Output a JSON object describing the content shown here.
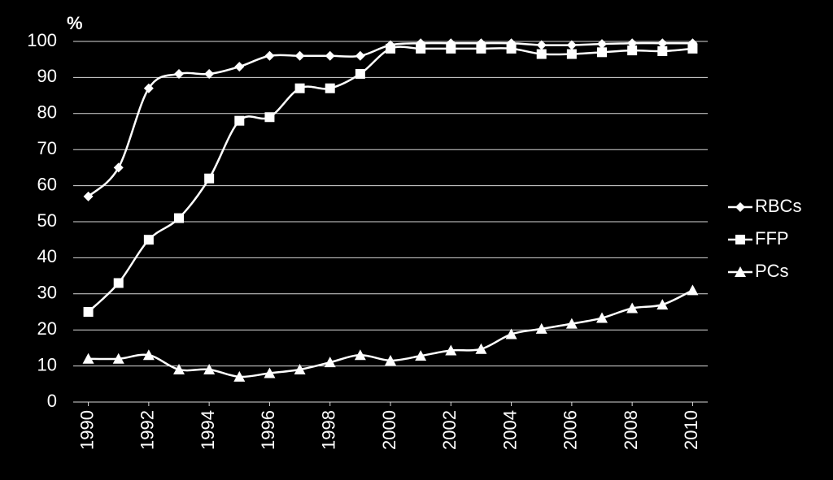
{
  "chart_data": {
    "type": "line",
    "ylabel": "%",
    "x": [
      1990,
      1991,
      1992,
      1993,
      1994,
      1995,
      1996,
      1997,
      1998,
      1999,
      2000,
      2001,
      2002,
      2003,
      2004,
      2005,
      2006,
      2007,
      2008,
      2009,
      2010
    ],
    "xlim": [
      1989.5,
      2010.5
    ],
    "xticks": [
      1990,
      1992,
      1994,
      1996,
      1998,
      2000,
      2002,
      2004,
      2006,
      2008,
      2010
    ],
    "ylim": [
      0,
      100
    ],
    "yticks": [
      0,
      10,
      20,
      30,
      40,
      50,
      60,
      70,
      80,
      90,
      100
    ],
    "grid": true,
    "legend": "right",
    "series": [
      {
        "name": "RBCs",
        "color": "#ffffff",
        "marker": "diamond",
        "values": [
          57,
          65,
          87,
          91,
          91,
          93,
          96,
          96,
          96,
          96,
          99,
          99.5,
          99.5,
          99.5,
          99.5,
          99,
          99,
          99.3,
          99.5,
          99.5,
          99.5
        ]
      },
      {
        "name": "FFP",
        "color": "#ffffff",
        "marker": "square",
        "values": [
          25,
          33,
          45,
          51,
          62,
          78,
          79,
          87,
          87,
          91,
          98,
          98,
          98,
          98,
          98,
          96.5,
          96.5,
          97,
          97.5,
          97.3,
          98
        ]
      },
      {
        "name": "PCs",
        "color": "#ffffff",
        "marker": "triangle",
        "values": [
          12,
          12,
          13,
          9,
          9,
          7,
          8,
          9,
          11,
          13,
          11.5,
          12.8,
          14.3,
          14.7,
          18.8,
          20.3,
          21.7,
          23.3,
          26,
          27,
          31
        ]
      }
    ]
  }
}
